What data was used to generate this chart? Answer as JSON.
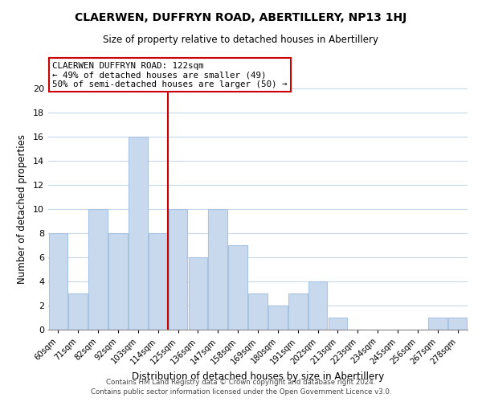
{
  "title": "CLAERWEN, DUFFRYN ROAD, ABERTILLERY, NP13 1HJ",
  "subtitle": "Size of property relative to detached houses in Abertillery",
  "xlabel": "Distribution of detached houses by size in Abertillery",
  "ylabel": "Number of detached properties",
  "bar_labels": [
    "60sqm",
    "71sqm",
    "82sqm",
    "92sqm",
    "103sqm",
    "114sqm",
    "125sqm",
    "136sqm",
    "147sqm",
    "158sqm",
    "169sqm",
    "180sqm",
    "191sqm",
    "202sqm",
    "213sqm",
    "223sqm",
    "234sqm",
    "245sqm",
    "256sqm",
    "267sqm",
    "278sqm"
  ],
  "bar_heights": [
    8,
    3,
    10,
    8,
    16,
    8,
    10,
    6,
    10,
    7,
    3,
    2,
    3,
    4,
    1,
    0,
    0,
    0,
    0,
    1,
    1
  ],
  "bar_color": "#c8d9ee",
  "bar_edge_color": "#a8c4e0",
  "vline_x": 6.0,
  "vline_color": "#cc0000",
  "annotation_title": "CLAERWEN DUFFRYN ROAD: 122sqm",
  "annotation_line1": "← 49% of detached houses are smaller (49)",
  "annotation_line2": "50% of semi-detached houses are larger (50) →",
  "annotation_box_edge": "#cc0000",
  "ylim": [
    0,
    20
  ],
  "yticks": [
    0,
    2,
    4,
    6,
    8,
    10,
    12,
    14,
    16,
    18,
    20
  ],
  "footer1": "Contains HM Land Registry data © Crown copyright and database right 2024.",
  "footer2": "Contains public sector information licensed under the Open Government Licence v3.0.",
  "background_color": "#ffffff",
  "grid_color": "#c8d8e8"
}
